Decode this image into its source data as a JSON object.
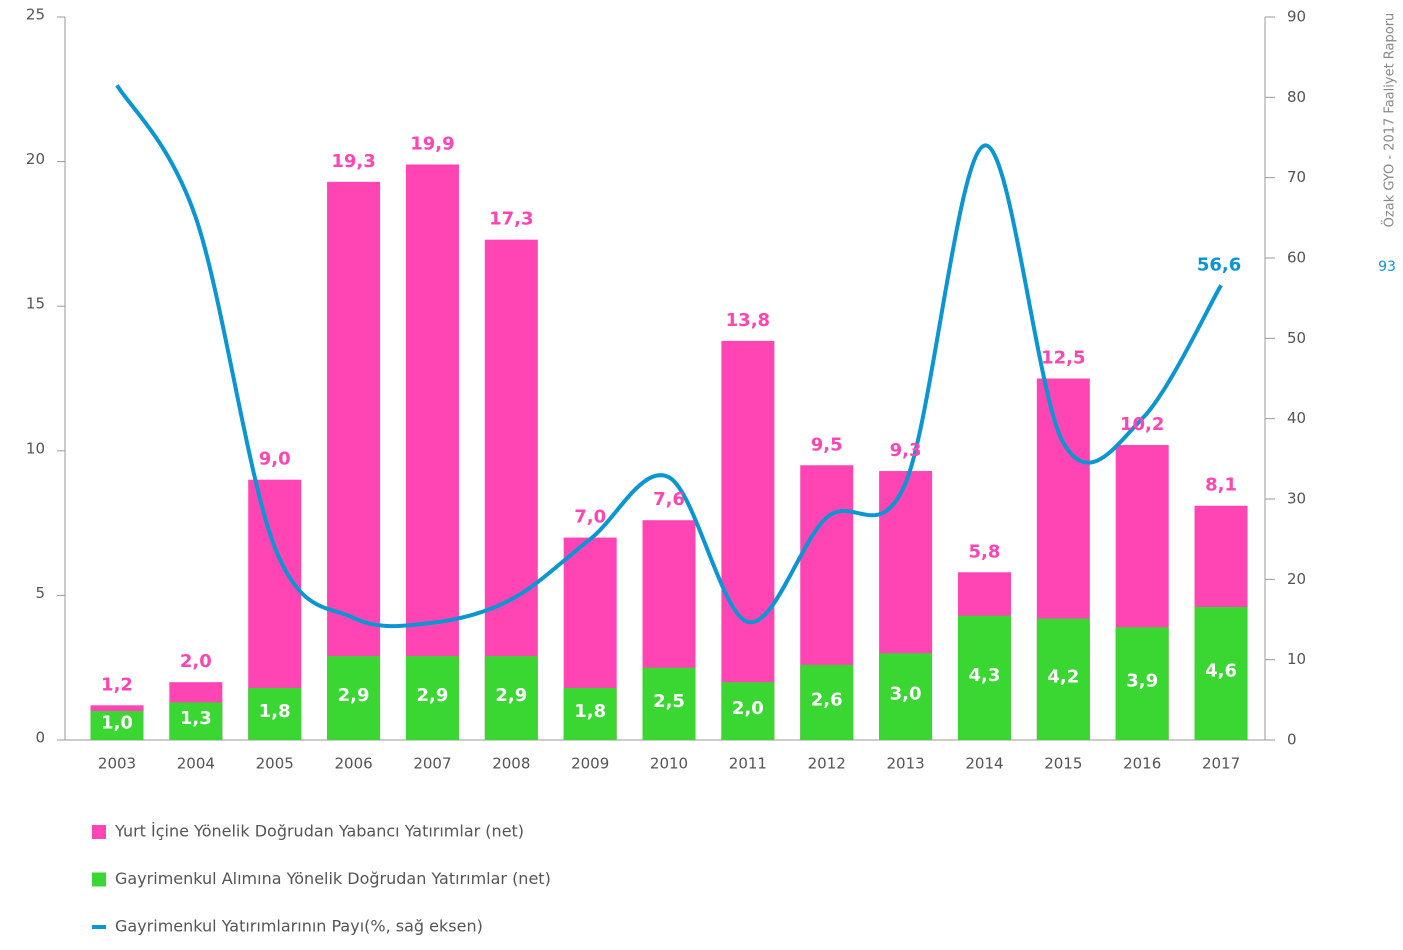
{
  "side_note": "Özak GYO - 2017 Faaliyet Raporu",
  "page_number": "93",
  "chart_data": {
    "type": "bar-line",
    "categories": [
      "2003",
      "2004",
      "2005",
      "2006",
      "2007",
      "2008",
      "2009",
      "2010",
      "2011",
      "2012",
      "2013",
      "2014",
      "2015",
      "2016",
      "2017"
    ],
    "series": [
      {
        "name": "Yurt İçine Yönelik Doğrudan Yabancı Yatırımlar (net)",
        "color": "#ff44b4",
        "type": "bar",
        "values": [
          1.2,
          2.0,
          9.0,
          19.3,
          19.9,
          17.3,
          7.0,
          7.6,
          13.8,
          9.5,
          9.3,
          5.8,
          12.5,
          10.2,
          8.1
        ],
        "value_labels": [
          "1,2",
          "2,0",
          "9,0",
          "19,3",
          "19,9",
          "17,3",
          "7,0",
          "7,6",
          "13,8",
          "9,5",
          "9,3",
          "5,8",
          "12,5",
          "10,2",
          "8,1"
        ]
      },
      {
        "name": "Gayrimenkul Alımına Yönelik Doğrudan Yatırımlar (net)",
        "color": "#3ad733",
        "type": "bar",
        "values": [
          1.0,
          1.3,
          1.8,
          2.9,
          2.9,
          2.9,
          1.8,
          2.5,
          2.0,
          2.6,
          3.0,
          4.3,
          4.2,
          3.9,
          4.6
        ],
        "value_labels": [
          "1,0",
          "1,3",
          "1,8",
          "2,9",
          "2,9",
          "2,9",
          "1,8",
          "2,5",
          "2,0",
          "2,6",
          "3,0",
          "4,3",
          "4,2",
          "3,9",
          "4,6"
        ]
      },
      {
        "name": "Gayrimenkul Yatırımlarının Payı(%, sağ eksen)",
        "color": "#0a96d2",
        "type": "line",
        "axis": "y2",
        "values": [
          81.5,
          65,
          24,
          15.2,
          14.6,
          17.5,
          25,
          32.7,
          14.7,
          27.7,
          32,
          74,
          37,
          40,
          56.6
        ],
        "value_labels": [
          null,
          null,
          null,
          null,
          null,
          null,
          null,
          null,
          null,
          null,
          null,
          null,
          null,
          null,
          "56,6"
        ]
      }
    ],
    "ylim": [
      0,
      25
    ],
    "yticks": [
      0,
      5,
      10,
      15,
      20,
      25
    ],
    "y2lim": [
      0,
      90
    ],
    "y2ticks": [
      0,
      10,
      20,
      30,
      40,
      50,
      60,
      70,
      80,
      90
    ],
    "legend": "bottom-left"
  }
}
